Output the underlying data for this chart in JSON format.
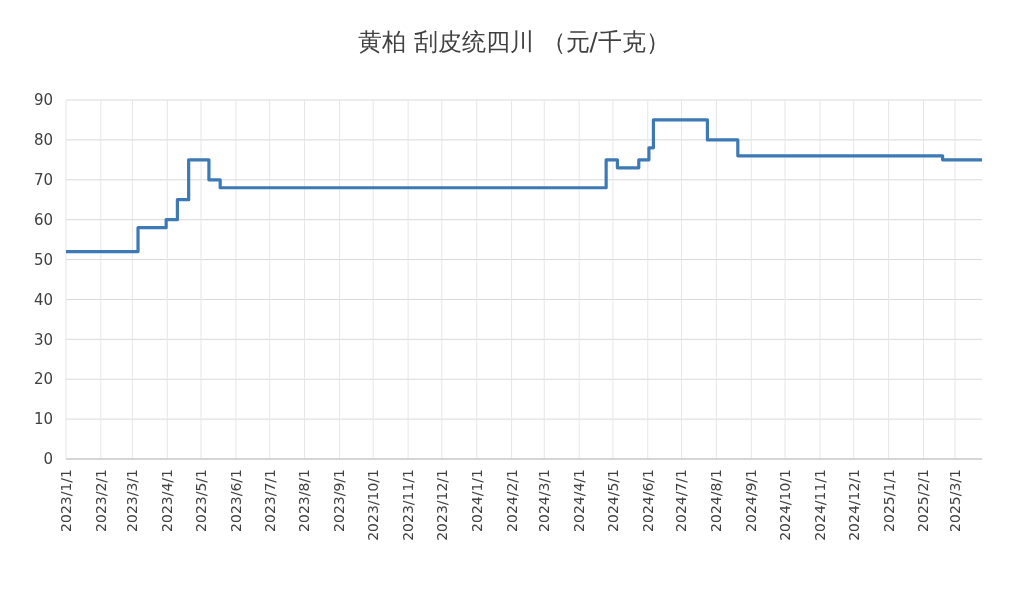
{
  "chart_data": {
    "type": "step",
    "title": "黄柏 刮皮统四川 （元/千克）",
    "x": [
      "2023-01-01",
      "2023-03-06",
      "2023-03-31",
      "2023-04-10",
      "2023-04-20",
      "2023-05-08",
      "2023-05-18",
      "2024-04-25",
      "2024-05-05",
      "2024-05-24",
      "2024-06-02",
      "2024-06-06",
      "2024-07-24",
      "2024-08-20",
      "2025-02-18",
      "2025-03-25"
    ],
    "series": [
      {
        "color": "#3d7ab5",
        "values": [
          52,
          58,
          60,
          65,
          75,
          70,
          68,
          75,
          73,
          75,
          78,
          85,
          80,
          76,
          75,
          75
        ]
      }
    ],
    "xlim": [
      "2023-01-01",
      "2025-03-25"
    ],
    "xticks": [
      {
        "value": "2023-01-01",
        "label": "2023/1/1"
      },
      {
        "value": "2023-02-01",
        "label": "2023/2/1"
      },
      {
        "value": "2023-03-01",
        "label": "2023/3/1"
      },
      {
        "value": "2023-04-01",
        "label": "2023/4/1"
      },
      {
        "value": "2023-05-01",
        "label": "2023/5/1"
      },
      {
        "value": "2023-06-01",
        "label": "2023/6/1"
      },
      {
        "value": "2023-07-01",
        "label": "2023/7/1"
      },
      {
        "value": "2023-08-01",
        "label": "2023/8/1"
      },
      {
        "value": "2023-09-01",
        "label": "2023/9/1"
      },
      {
        "value": "2023-10-01",
        "label": "2023/10/1"
      },
      {
        "value": "2023-11-01",
        "label": "2023/11/1"
      },
      {
        "value": "2023-12-01",
        "label": "2023/12/1"
      },
      {
        "value": "2024-01-01",
        "label": "2024/1/1"
      },
      {
        "value": "2024-02-01",
        "label": "2024/2/1"
      },
      {
        "value": "2024-03-01",
        "label": "2024/3/1"
      },
      {
        "value": "2024-04-01",
        "label": "2024/4/1"
      },
      {
        "value": "2024-05-01",
        "label": "2024/5/1"
      },
      {
        "value": "2024-06-01",
        "label": "2024/6/1"
      },
      {
        "value": "2024-07-01",
        "label": "2024/7/1"
      },
      {
        "value": "2024-08-01",
        "label": "2024/8/1"
      },
      {
        "value": "2024-09-01",
        "label": "2024/9/1"
      },
      {
        "value": "2024-10-01",
        "label": "2024/10/1"
      },
      {
        "value": "2024-11-01",
        "label": "2024/11/1"
      },
      {
        "value": "2024-12-01",
        "label": "2024/12/1"
      },
      {
        "value": "2025-01-01",
        "label": "2025/1/1"
      },
      {
        "value": "2025-02-01",
        "label": "2025/2/1"
      },
      {
        "value": "2025-03-01",
        "label": "2025/3/1"
      }
    ],
    "ylim": [
      0,
      90
    ],
    "yticks": [
      0,
      10,
      20,
      30,
      40,
      50,
      60,
      70,
      80,
      90
    ],
    "grid": true
  }
}
